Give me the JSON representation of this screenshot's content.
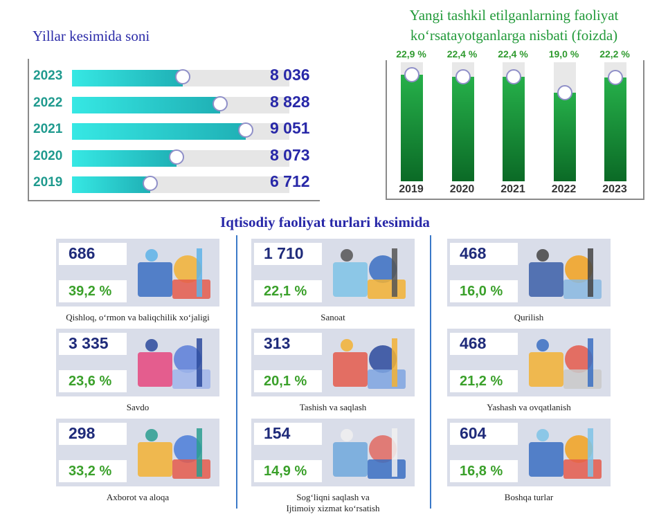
{
  "left_chart": {
    "title": "Yillar kesimida soni",
    "rows": [
      {
        "year": "2023",
        "value": "8 036",
        "fill": 0.51
      },
      {
        "year": "2022",
        "value": "8 828",
        "fill": 0.68
      },
      {
        "year": "2021",
        "value": "9 051",
        "fill": 0.8
      },
      {
        "year": "2020",
        "value": "8 073",
        "fill": 0.48
      },
      {
        "year": "2019",
        "value": "6 712",
        "fill": 0.36
      }
    ]
  },
  "right_chart": {
    "title_line1": "Yangi tashkil etilganlarning faoliyat",
    "title_line2": "koʻrsatayotganlarga nisbati (foizda)",
    "columns": [
      {
        "year": "2019",
        "label": "22,9 %",
        "value": 22.9
      },
      {
        "year": "2020",
        "label": "22,4 %",
        "value": 22.4
      },
      {
        "year": "2021",
        "label": "22,4 %",
        "value": 22.4
      },
      {
        "year": "2022",
        "label": "19,0 %",
        "value": 19.0
      },
      {
        "year": "2023",
        "label": "22,2 %",
        "value": 22.2
      }
    ]
  },
  "chart_data": [
    {
      "type": "bar",
      "title": "Yillar kesimida soni",
      "categories": [
        "2023",
        "2022",
        "2021",
        "2020",
        "2019"
      ],
      "values": [
        8036,
        8828,
        9051,
        8073,
        6712
      ]
    },
    {
      "type": "bar",
      "title": "Yangi tashkil etilganlarning faoliyat koʻrsatayotganlarga nisbati (foizda)",
      "categories": [
        "2019",
        "2020",
        "2021",
        "2022",
        "2023"
      ],
      "values": [
        22.9,
        22.4,
        22.4,
        19.0,
        22.2
      ]
    }
  ],
  "sectors": {
    "title": "Iqtisodiy faoliyat turlari kesimida",
    "items": [
      {
        "count": "686",
        "percent": "39,2 %",
        "name": "Qishloq, oʻrmon va baliqchilik xoʻjaligi",
        "art": "agriculture-illustration"
      },
      {
        "count": "1 710",
        "percent": "22,1 %",
        "name": "Sanoat",
        "art": "industry-illustration"
      },
      {
        "count": "468",
        "percent": "16,0 %",
        "name": "Qurilish",
        "art": "construction-illustration"
      },
      {
        "count": "3 335",
        "percent": "23,6 %",
        "name": "Savdo",
        "art": "shopping-illustration"
      },
      {
        "count": "313",
        "percent": "20,1 %",
        "name": "Tashish va saqlash",
        "art": "logistics-illustration"
      },
      {
        "count": "468",
        "percent": "21,2 %",
        "name": "Yashash va ovqatlanish",
        "art": "food-service-illustration"
      },
      {
        "count": "298",
        "percent": "33,2 %",
        "name": "Axborot va aloqa",
        "art": "it-illustration"
      },
      {
        "count": "154",
        "percent": "14,9 %",
        "name": "Sogʻliqni saqlash va",
        "name2": "Ijtimoiy xizmat koʻrsatish",
        "art": "healthcare-illustration"
      },
      {
        "count": "604",
        "percent": "16,8 %",
        "name": "Boshqa turlar",
        "art": "analytics-illustration"
      }
    ]
  },
  "colors": {
    "accent_blue": "#2828a8",
    "teal": "#1fb0b5",
    "green": "#1a8a34",
    "card_bg": "#d9dde9"
  }
}
